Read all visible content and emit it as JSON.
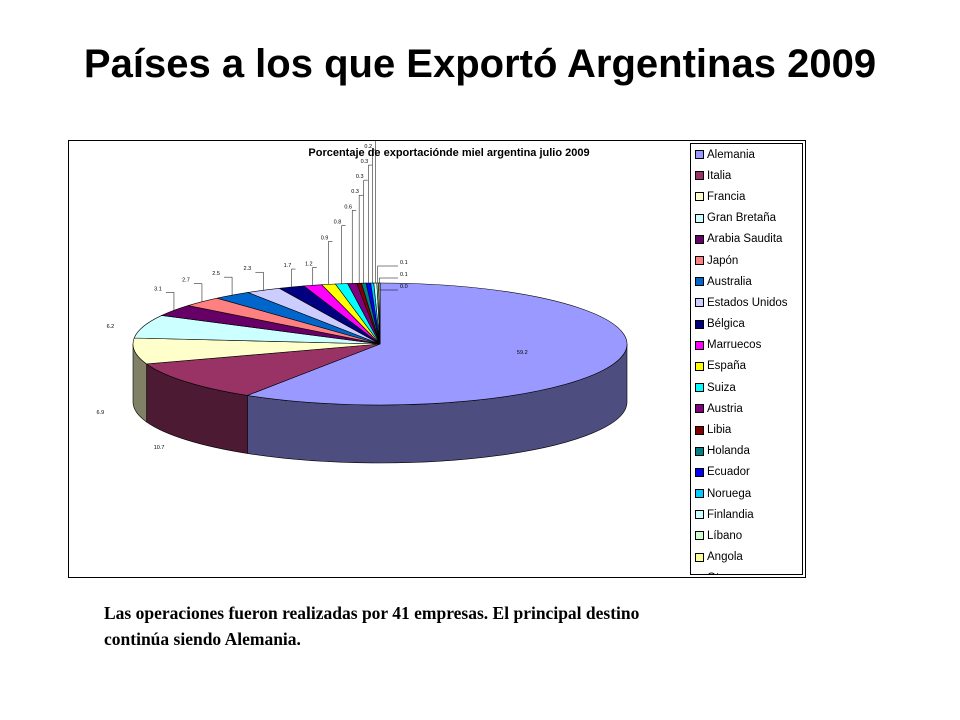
{
  "slide": {
    "title": "Países a los que Exportó Argentinas 2009",
    "caption_line1": "Las operaciones fueron realizadas por 41 empresas. El principal destino",
    "caption_line2": "continúa siendo Alemania."
  },
  "chart_data": {
    "type": "pie",
    "title": "Porcentaje de exportaciónde miel  argentina julio 2009",
    "legend_position": "right",
    "categories": [
      "Alemania",
      "Italia",
      "Francia",
      "Gran Bretaña",
      "Arabia  Saudita",
      "Japón",
      "Australia",
      "Estados Unidos",
      "Bélgica",
      "Marruecos",
      "España",
      "Suiza",
      "Austria",
      "Libia",
      "Holanda",
      "Ecuador",
      "Noruega",
      "Finlandia",
      "Líbano",
      "Angola",
      "Otros"
    ],
    "values": [
      59.2,
      10.7,
      6.9,
      6.2,
      3.1,
      2.7,
      2.5,
      2.3,
      1.7,
      1.2,
      0.9,
      0.8,
      0.6,
      0.3,
      0.3,
      0.3,
      0.2,
      0.2,
      0.1,
      0.1,
      0.0
    ],
    "data_labels": [
      "59.2",
      "10.7",
      "6.9",
      "6.2",
      "3.1",
      "2.7",
      "2.5",
      "2.3",
      "1.7",
      "1.2",
      "0.9",
      "0.8",
      "0.6",
      "0.3",
      "0.3",
      "0.3",
      "0.2",
      "0.2",
      "0.1",
      "0.1",
      "0.0"
    ],
    "colors": [
      "#9999ff",
      "#993366",
      "#ffffcc",
      "#ccffff",
      "#660066",
      "#ff8080",
      "#0066cc",
      "#ccccff",
      "#000080",
      "#ff00ff",
      "#ffff00",
      "#00ffff",
      "#800080",
      "#800000",
      "#008080",
      "#0000ff",
      "#00ccff",
      "#ccffff",
      "#ccffcc",
      "#ffff99",
      "#99ccff"
    ]
  }
}
